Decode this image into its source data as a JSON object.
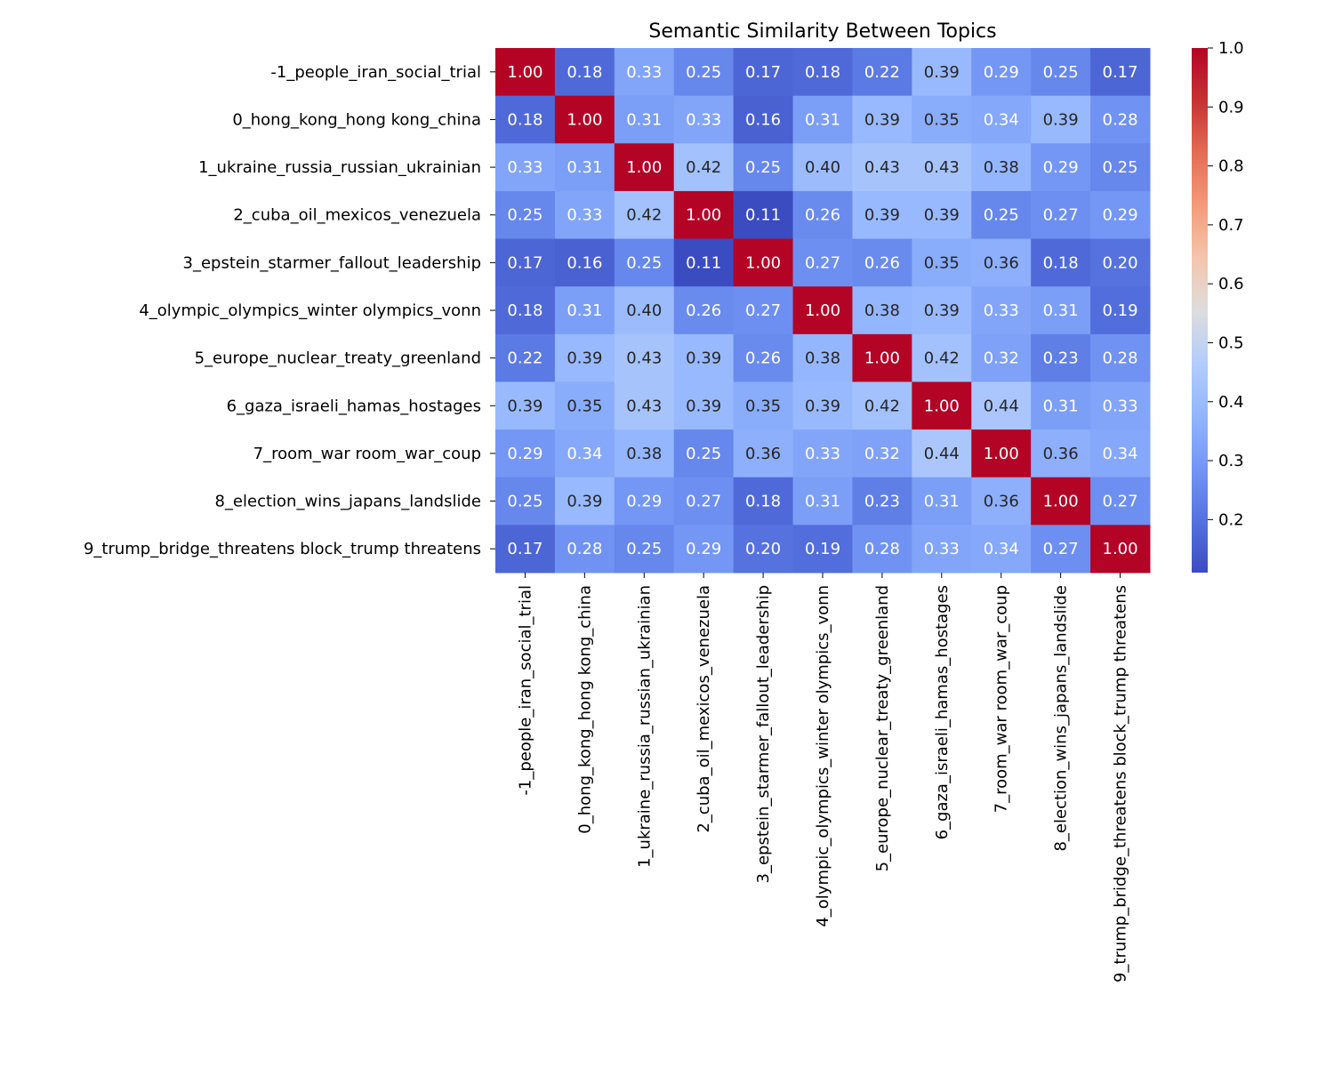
{
  "chart_data": {
    "type": "heatmap",
    "title": "Semantic Similarity Between Topics",
    "labels": [
      "-1_people_iran_social_trial",
      "0_hong_kong_hong kong_china",
      "1_ukraine_russia_russian_ukrainian",
      "2_cuba_oil_mexicos_venezuela",
      "3_epstein_starmer_fallout_leadership",
      "4_olympic_olympics_winter olympics_vonn",
      "5_europe_nuclear_treaty_greenland",
      "6_gaza_israeli_hamas_hostages",
      "7_room_war room_war_coup",
      "8_election_wins_japans_landslide",
      "9_trump_bridge_threatens block_trump threatens"
    ],
    "values": [
      [
        1.0,
        0.18,
        0.33,
        0.25,
        0.17,
        0.18,
        0.22,
        0.39,
        0.29,
        0.25,
        0.17
      ],
      [
        0.18,
        1.0,
        0.31,
        0.33,
        0.16,
        0.31,
        0.39,
        0.35,
        0.34,
        0.39,
        0.28
      ],
      [
        0.33,
        0.31,
        1.0,
        0.42,
        0.25,
        0.4,
        0.43,
        0.43,
        0.38,
        0.29,
        0.25
      ],
      [
        0.25,
        0.33,
        0.42,
        1.0,
        0.11,
        0.26,
        0.39,
        0.39,
        0.25,
        0.27,
        0.29
      ],
      [
        0.17,
        0.16,
        0.25,
        0.11,
        1.0,
        0.27,
        0.26,
        0.35,
        0.36,
        0.18,
        0.2
      ],
      [
        0.18,
        0.31,
        0.4,
        0.26,
        0.27,
        1.0,
        0.38,
        0.39,
        0.33,
        0.31,
        0.19
      ],
      [
        0.22,
        0.39,
        0.43,
        0.39,
        0.26,
        0.38,
        1.0,
        0.42,
        0.32,
        0.23,
        0.28
      ],
      [
        0.39,
        0.35,
        0.43,
        0.39,
        0.35,
        0.39,
        0.42,
        1.0,
        0.44,
        0.31,
        0.33
      ],
      [
        0.29,
        0.34,
        0.38,
        0.25,
        0.36,
        0.33,
        0.32,
        0.44,
        1.0,
        0.36,
        0.34
      ],
      [
        0.25,
        0.39,
        0.29,
        0.27,
        0.18,
        0.31,
        0.23,
        0.31,
        0.36,
        1.0,
        0.27
      ],
      [
        0.17,
        0.28,
        0.25,
        0.29,
        0.2,
        0.19,
        0.28,
        0.33,
        0.34,
        0.27,
        1.0
      ]
    ],
    "colormap": "coolwarm",
    "color_range": [
      0.11,
      1.0
    ],
    "colorbar_ticks": [
      "0.2",
      "0.3",
      "0.4",
      "0.5",
      "0.6",
      "0.7",
      "0.8",
      "0.9",
      "1.0"
    ],
    "annotations": true,
    "value_format": "0.00",
    "colorbar_position": "right"
  }
}
